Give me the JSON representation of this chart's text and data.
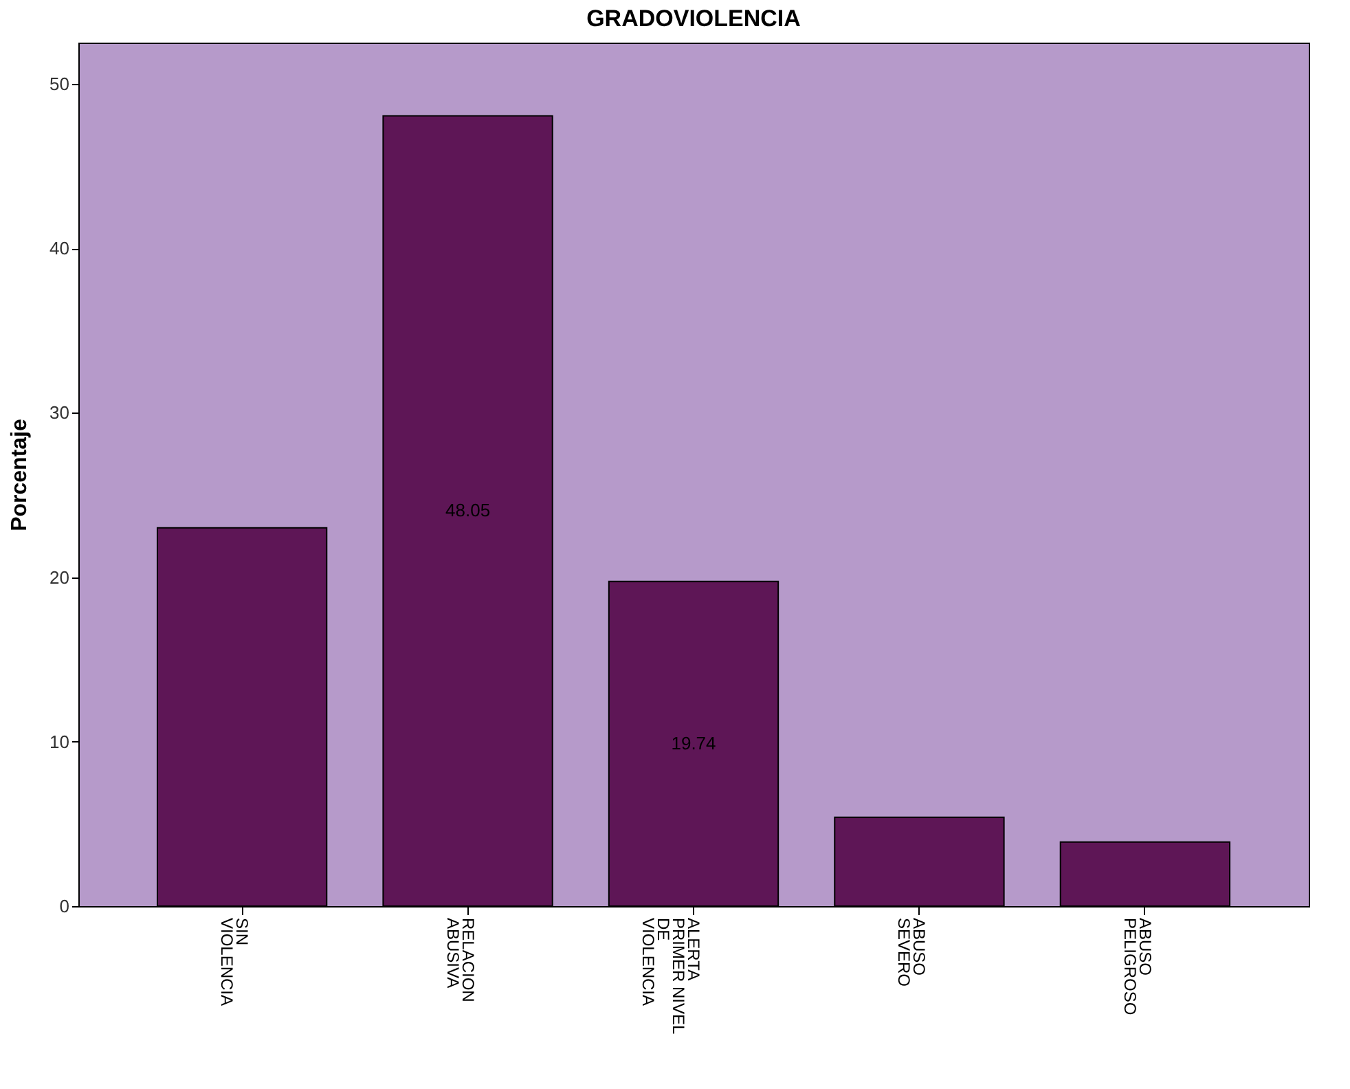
{
  "chart_data": {
    "type": "bar",
    "title": "GRADOVIOLENCIA",
    "ylabel": "Porcentaje",
    "categories": [
      "SIN\nVIOLENCIA",
      "RELACION\nABUSIVA",
      "ALERTA\nPRIMER NIVEL\nDE\nVIOLENCIA",
      "ABUSO\nSEVERO",
      "ABUSO\nPELIGROSO"
    ],
    "values": [
      23.0,
      48.05,
      19.74,
      5.4,
      3.9
    ],
    "value_labels": [
      null,
      "48.05",
      "19.74",
      null,
      null
    ],
    "color": "#5e1656",
    "ylim": [
      0,
      52.5
    ],
    "yticks": [
      0,
      10,
      20,
      30,
      40,
      50
    ],
    "grid": false
  }
}
